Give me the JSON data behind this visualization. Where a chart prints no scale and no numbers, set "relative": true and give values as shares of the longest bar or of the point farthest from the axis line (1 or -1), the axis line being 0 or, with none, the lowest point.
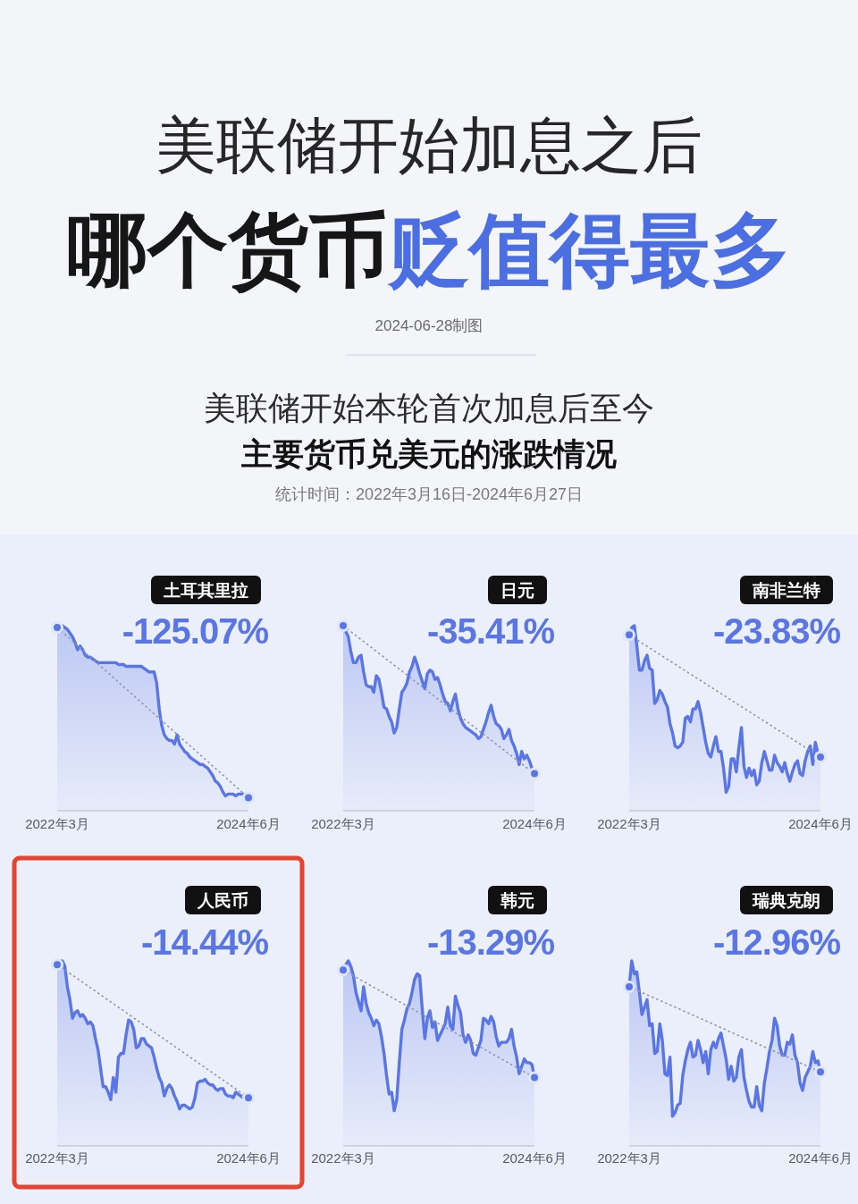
{
  "chart_data": [
    {
      "type": "other",
      "title": "美联储开始加息之后",
      "annotations": [
        "哪个货币",
        "贬值得最多",
        "2024-06-28制图",
        "美联储开始本轮首次加息后至今",
        "主要货币兑美元的涨跌情况",
        "统计时间：2022年3月16日-2024年6月27日"
      ]
    },
    {
      "type": "area",
      "title": "土耳其里拉",
      "subtitle": "-125.07%",
      "relative": true,
      "categories": [
        "2022年3月",
        null,
        null,
        null,
        null,
        null,
        null,
        null,
        null,
        null,
        null,
        null,
        null,
        null,
        null,
        null,
        null,
        null,
        null,
        null,
        null,
        null,
        null,
        null,
        null,
        null,
        null,
        null,
        null,
        null,
        null,
        null,
        null,
        null,
        null,
        null,
        null,
        null,
        null,
        null,
        null,
        null,
        null,
        null,
        null,
        null,
        null,
        null,
        null,
        null,
        null,
        null,
        null,
        null,
        null,
        null,
        null,
        null,
        null,
        null,
        null,
        null,
        null,
        null,
        null,
        null,
        null,
        null,
        null,
        null,
        null,
        null,
        null,
        null,
        null,
        "2024年6月"
      ],
      "series": [
        {
          "color": "#5a76e6",
          "values": [
            0.99,
            1.0,
            1.0,
            0.99,
            0.98,
            0.96,
            0.94,
            0.91,
            0.87,
            0.89,
            0.87,
            0.84,
            0.83,
            0.83,
            0.82,
            0.81,
            0.8,
            0.8,
            0.8,
            0.8,
            0.8,
            0.8,
            0.8,
            0.8,
            0.79,
            0.79,
            0.79,
            0.78,
            0.78,
            0.78,
            0.78,
            0.78,
            0.78,
            0.78,
            0.77,
            0.76,
            0.75,
            0.75,
            0.75,
            0.69,
            0.55,
            0.46,
            0.41,
            0.39,
            0.38,
            0.38,
            0.36,
            0.41,
            0.36,
            0.34,
            0.32,
            0.31,
            0.29,
            0.28,
            0.27,
            0.26,
            0.25,
            0.25,
            0.24,
            0.23,
            0.21,
            0.19,
            0.16,
            0.15,
            0.13,
            0.1,
            0.08,
            0.09,
            0.09,
            0.09,
            0.08,
            0.09,
            0.09,
            0.09,
            0.08,
            0.07
          ]
        },
        {
          "type": "line",
          "color": "#8f96ad",
          "line_style": "dotted",
          "x": [
            "2022年3月",
            "2024年6月"
          ],
          "values": [
            0.99,
            0.07
          ]
        },
        {
          "type": "scatter",
          "color": "#5a76e6",
          "marker": "circle",
          "x": [
            "2022年3月",
            "2024年6月"
          ],
          "values": [
            0.99,
            0.07
          ]
        }
      ]
    },
    {
      "type": "area",
      "title": "日元",
      "subtitle": "-35.41%",
      "relative": true,
      "categories": [
        "2022年3月",
        null,
        null,
        null,
        null,
        null,
        null,
        null,
        null,
        null,
        null,
        null,
        null,
        null,
        null,
        null,
        null,
        null,
        null,
        null,
        null,
        null,
        null,
        null,
        null,
        null,
        null,
        null,
        null,
        null,
        null,
        null,
        null,
        null,
        null,
        null,
        null,
        null,
        null,
        null,
        null,
        null,
        null,
        null,
        null,
        null,
        null,
        null,
        null,
        null,
        null,
        null,
        null,
        null,
        null,
        null,
        null,
        null,
        null,
        null,
        null,
        null,
        null,
        null,
        null,
        null,
        null,
        null,
        null,
        null,
        null,
        null,
        null,
        null,
        null,
        "2024年6月"
      ],
      "series": [
        {
          "color": "#5a76e6",
          "values": [
            1.0,
            0.97,
            0.94,
            0.86,
            0.8,
            0.8,
            0.83,
            0.84,
            0.75,
            0.68,
            0.67,
            0.67,
            0.64,
            0.73,
            0.71,
            0.64,
            0.56,
            0.55,
            0.51,
            0.48,
            0.42,
            0.45,
            0.55,
            0.64,
            0.66,
            0.69,
            0.75,
            0.78,
            0.83,
            0.79,
            0.74,
            0.7,
            0.66,
            0.74,
            0.76,
            0.75,
            0.71,
            0.72,
            0.68,
            0.63,
            0.59,
            0.58,
            0.54,
            0.59,
            0.63,
            0.55,
            0.5,
            0.47,
            0.45,
            0.44,
            0.43,
            0.42,
            0.41,
            0.39,
            0.4,
            0.44,
            0.48,
            0.53,
            0.57,
            0.51,
            0.47,
            0.46,
            0.44,
            0.39,
            0.41,
            0.44,
            0.38,
            0.35,
            0.31,
            0.25,
            0.32,
            0.28,
            0.3,
            0.27,
            0.23,
            0.2
          ]
        },
        {
          "type": "line",
          "color": "#8f96ad",
          "line_style": "dotted",
          "x": [
            "2022年3月",
            "2024年6月"
          ],
          "values": [
            1.0,
            0.2
          ]
        },
        {
          "type": "scatter",
          "color": "#5a76e6",
          "marker": "circle",
          "x": [
            "2022年3月",
            "2024年6月"
          ],
          "values": [
            1.0,
            0.2
          ]
        }
      ]
    },
    {
      "type": "area",
      "title": "南非兰特",
      "subtitle": "-23.83%",
      "relative": true,
      "categories": [
        "2022年3月",
        null,
        null,
        null,
        null,
        null,
        null,
        null,
        null,
        null,
        null,
        null,
        null,
        null,
        null,
        null,
        null,
        null,
        null,
        null,
        null,
        null,
        null,
        null,
        null,
        null,
        null,
        null,
        null,
        null,
        null,
        null,
        null,
        null,
        null,
        null,
        null,
        null,
        null,
        null,
        null,
        null,
        null,
        null,
        null,
        null,
        null,
        null,
        null,
        null,
        null,
        null,
        null,
        null,
        null,
        null,
        null,
        null,
        null,
        null,
        null,
        null,
        null,
        null,
        null,
        null,
        null,
        null,
        null,
        null,
        null,
        null,
        null,
        null,
        null,
        "2024年6月"
      ],
      "series": [
        {
          "color": "#5a76e6",
          "values": [
            0.95,
            0.99,
            1.0,
            0.89,
            0.76,
            0.76,
            0.81,
            0.84,
            0.77,
            0.76,
            0.58,
            0.6,
            0.65,
            0.63,
            0.59,
            0.56,
            0.47,
            0.42,
            0.35,
            0.34,
            0.35,
            0.37,
            0.5,
            0.51,
            0.48,
            0.55,
            0.55,
            0.59,
            0.53,
            0.45,
            0.37,
            0.31,
            0.29,
            0.35,
            0.4,
            0.32,
            0.32,
            0.23,
            0.1,
            0.13,
            0.28,
            0.28,
            0.21,
            0.34,
            0.45,
            0.24,
            0.18,
            0.23,
            0.19,
            0.22,
            0.14,
            0.16,
            0.26,
            0.32,
            0.27,
            0.22,
            0.22,
            0.3,
            0.26,
            0.24,
            0.21,
            0.26,
            0.2,
            0.16,
            0.21,
            0.25,
            0.27,
            0.2,
            0.19,
            0.27,
            0.32,
            0.35,
            0.25,
            0.37,
            0.31,
            0.29
          ]
        },
        {
          "type": "line",
          "color": "#8f96ad",
          "line_style": "dotted",
          "x": [
            "2022年3月",
            "2024年6月"
          ],
          "values": [
            0.95,
            0.29
          ]
        },
        {
          "type": "scatter",
          "color": "#5a76e6",
          "marker": "circle",
          "x": [
            "2022年3月",
            "2024年6月"
          ],
          "values": [
            0.95,
            0.29
          ]
        }
      ]
    },
    {
      "type": "area",
      "title": "人民币",
      "subtitle": "-14.44%",
      "relative": true,
      "categories": [
        "2022年3月",
        null,
        null,
        null,
        null,
        null,
        null,
        null,
        null,
        null,
        null,
        null,
        null,
        null,
        null,
        null,
        null,
        null,
        null,
        null,
        null,
        null,
        null,
        null,
        null,
        null,
        null,
        null,
        null,
        null,
        null,
        null,
        null,
        null,
        null,
        null,
        null,
        null,
        null,
        null,
        null,
        null,
        null,
        null,
        null,
        null,
        null,
        null,
        null,
        null,
        null,
        null,
        null,
        null,
        null,
        null,
        null,
        null,
        null,
        null,
        null,
        null,
        null,
        null,
        null,
        null,
        null,
        null,
        null,
        null,
        null,
        null,
        null,
        null,
        null,
        "2024年6月"
      ],
      "series": [
        {
          "color": "#5a76e6",
          "values": [
            0.98,
            0.99,
            1.0,
            0.97,
            0.86,
            0.79,
            0.69,
            0.72,
            0.73,
            0.7,
            0.71,
            0.69,
            0.66,
            0.67,
            0.65,
            0.58,
            0.52,
            0.42,
            0.32,
            0.32,
            0.29,
            0.25,
            0.37,
            0.29,
            0.48,
            0.5,
            0.5,
            0.6,
            0.68,
            0.67,
            0.63,
            0.53,
            0.54,
            0.58,
            0.58,
            0.55,
            0.54,
            0.53,
            0.48,
            0.42,
            0.37,
            0.34,
            0.27,
            0.31,
            0.33,
            0.31,
            0.27,
            0.24,
            0.2,
            0.22,
            0.22,
            0.21,
            0.2,
            0.21,
            0.26,
            0.34,
            0.35,
            0.35,
            0.36,
            0.34,
            0.33,
            0.33,
            0.31,
            0.3,
            0.31,
            0.31,
            0.28,
            0.27,
            0.27,
            0.26,
            0.29,
            0.28,
            0.27,
            0.26,
            0.26,
            0.26
          ]
        },
        {
          "type": "line",
          "color": "#8f96ad",
          "line_style": "dotted",
          "x": [
            "2022年3月",
            "2024年6月"
          ],
          "values": [
            0.98,
            0.26
          ]
        },
        {
          "type": "scatter",
          "color": "#5a76e6",
          "marker": "circle",
          "x": [
            "2022年3月",
            "2024年6月"
          ],
          "values": [
            0.98,
            0.26
          ]
        }
      ]
    },
    {
      "type": "area",
      "title": "韩元",
      "subtitle": "-13.29%",
      "relative": true,
      "categories": [
        "2022年3月",
        null,
        null,
        null,
        null,
        null,
        null,
        null,
        null,
        null,
        null,
        null,
        null,
        null,
        null,
        null,
        null,
        null,
        null,
        null,
        null,
        null,
        null,
        null,
        null,
        null,
        null,
        null,
        null,
        null,
        null,
        null,
        null,
        null,
        null,
        null,
        null,
        null,
        null,
        null,
        null,
        null,
        null,
        null,
        null,
        null,
        null,
        null,
        null,
        null,
        null,
        null,
        null,
        null,
        null,
        null,
        null,
        null,
        null,
        null,
        null,
        null,
        null,
        null,
        null,
        null,
        null,
        null,
        null,
        null,
        null,
        null,
        null,
        null,
        null,
        "2024年6月"
      ],
      "series": [
        {
          "color": "#5a76e6",
          "values": [
            0.95,
            0.98,
            1.0,
            0.97,
            0.92,
            0.83,
            0.78,
            0.73,
            0.86,
            0.77,
            0.72,
            0.69,
            0.65,
            0.68,
            0.66,
            0.59,
            0.5,
            0.38,
            0.28,
            0.29,
            0.19,
            0.25,
            0.45,
            0.63,
            0.68,
            0.74,
            0.77,
            0.83,
            0.9,
            0.93,
            0.92,
            0.74,
            0.58,
            0.69,
            0.73,
            0.64,
            0.67,
            0.57,
            0.6,
            0.63,
            0.66,
            0.75,
            0.65,
            0.63,
            0.81,
            0.76,
            0.72,
            0.6,
            0.56,
            0.6,
            0.57,
            0.5,
            0.49,
            0.53,
            0.57,
            0.69,
            0.68,
            0.66,
            0.7,
            0.67,
            0.59,
            0.54,
            0.56,
            0.56,
            0.56,
            0.58,
            0.63,
            0.54,
            0.48,
            0.39,
            0.43,
            0.47,
            0.45,
            0.45,
            0.44,
            0.37
          ]
        },
        {
          "type": "line",
          "color": "#8f96ad",
          "line_style": "dotted",
          "x": [
            "2022年3月",
            "2024年6月"
          ],
          "values": [
            0.95,
            0.37
          ]
        },
        {
          "type": "scatter",
          "color": "#5a76e6",
          "marker": "circle",
          "x": [
            "2022年3月",
            "2024年6月"
          ],
          "values": [
            0.95,
            0.37
          ]
        }
      ]
    },
    {
      "type": "area",
      "title": "瑞典克朗",
      "subtitle": "-12.96%",
      "relative": true,
      "categories": [
        "2022年3月",
        null,
        null,
        null,
        null,
        null,
        null,
        null,
        null,
        null,
        null,
        null,
        null,
        null,
        null,
        null,
        null,
        null,
        null,
        null,
        null,
        null,
        null,
        null,
        null,
        null,
        null,
        null,
        null,
        null,
        null,
        null,
        null,
        null,
        null,
        null,
        null,
        null,
        null,
        null,
        null,
        null,
        null,
        null,
        null,
        null,
        null,
        null,
        null,
        null,
        null,
        null,
        null,
        null,
        null,
        null,
        null,
        null,
        null,
        null,
        null,
        null,
        null,
        null,
        null,
        null,
        null,
        null,
        null,
        null,
        null,
        null,
        null,
        null,
        null,
        "2024年6月"
      ],
      "series": [
        {
          "color": "#5a76e6",
          "values": [
            0.86,
            1.0,
            0.93,
            0.94,
            0.83,
            0.71,
            0.75,
            0.79,
            0.65,
            0.66,
            0.5,
            0.51,
            0.66,
            0.57,
            0.39,
            0.38,
            0.48,
            0.16,
            0.18,
            0.22,
            0.23,
            0.38,
            0.46,
            0.52,
            0.56,
            0.48,
            0.49,
            0.57,
            0.52,
            0.45,
            0.51,
            0.39,
            0.52,
            0.56,
            0.53,
            0.58,
            0.61,
            0.54,
            0.47,
            0.36,
            0.43,
            0.35,
            0.37,
            0.48,
            0.52,
            0.37,
            0.3,
            0.24,
            0.21,
            0.21,
            0.32,
            0.22,
            0.19,
            0.34,
            0.42,
            0.51,
            0.57,
            0.69,
            0.65,
            0.54,
            0.49,
            0.49,
            0.56,
            0.55,
            0.6,
            0.49,
            0.45,
            0.34,
            0.3,
            0.37,
            0.4,
            0.43,
            0.51,
            0.45,
            0.46,
            0.4
          ]
        },
        {
          "type": "line",
          "color": "#8f96ad",
          "line_style": "dotted",
          "x": [
            "2022年3月",
            "2024年6月"
          ],
          "values": [
            0.86,
            0.4
          ]
        },
        {
          "type": "scatter",
          "color": "#5a76e6",
          "marker": "circle",
          "x": [
            "2022年3月",
            "2024年6月"
          ],
          "values": [
            0.86,
            0.4
          ]
        }
      ]
    }
  ]
}
